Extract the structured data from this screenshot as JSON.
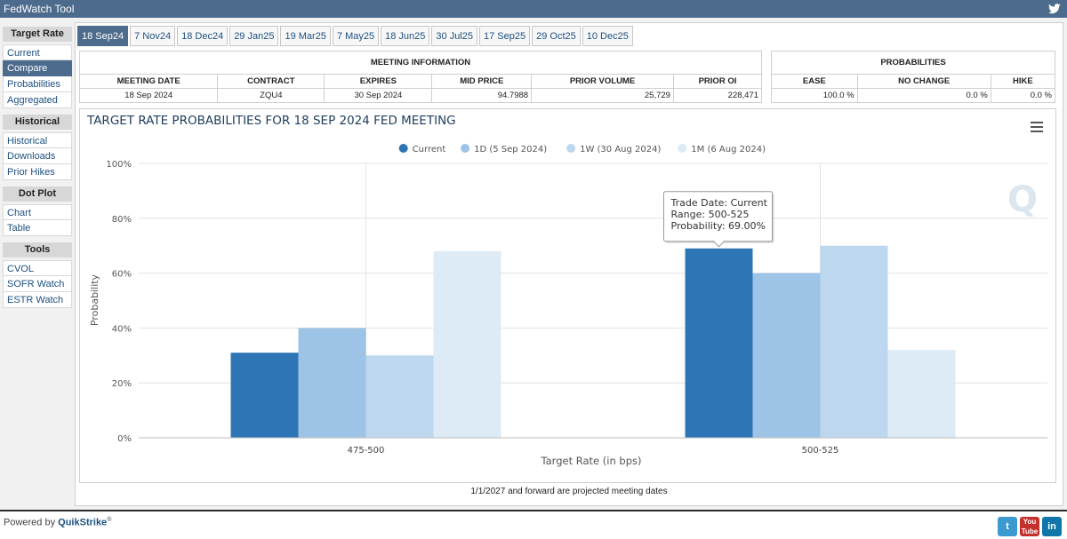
{
  "app": {
    "title": "FedWatch Tool"
  },
  "sidebar": {
    "sections": [
      {
        "heading": "Target Rate",
        "items": [
          "Current",
          "Compare",
          "Probabilities",
          "Aggregated"
        ]
      },
      {
        "heading": "Historical",
        "items": [
          "Historical",
          "Downloads",
          "Prior Hikes"
        ]
      },
      {
        "heading": "Dot Plot",
        "items": [
          "Chart",
          "Table"
        ]
      },
      {
        "heading": "Tools",
        "items": [
          "CVOL",
          "SOFR Watch",
          "ESTR Watch"
        ]
      }
    ],
    "active": "Compare"
  },
  "tabs": [
    "18 Sep24",
    "7 Nov24",
    "18 Dec24",
    "29 Jan25",
    "19 Mar25",
    "7 May25",
    "18 Jun25",
    "30 Jul25",
    "17 Sep25",
    "29 Oct25",
    "10 Dec25"
  ],
  "active_tab": "18 Sep24",
  "meeting_info": {
    "heading": "MEETING INFORMATION",
    "columns": [
      "MEETING DATE",
      "CONTRACT",
      "EXPIRES",
      "MID PRICE",
      "PRIOR VOLUME",
      "PRIOR OI"
    ],
    "row": [
      "18 Sep 2024",
      "ZQU4",
      "30 Sep 2024",
      "94.7988",
      "25,729",
      "228,471"
    ]
  },
  "probabilities": {
    "heading": "PROBABILITIES",
    "columns": [
      "EASE",
      "NO CHANGE",
      "HIKE"
    ],
    "row": [
      "100.0 %",
      "0.0 %",
      "0.0 %"
    ]
  },
  "chart_data": {
    "type": "bar",
    "title": "TARGET RATE PROBABILITIES FOR 18 SEP 2024 FED MEETING",
    "xlabel": "Target Rate (in bps)",
    "ylabel": "Probability",
    "categories": [
      "475-500",
      "500-525"
    ],
    "ylim": [
      0,
      100
    ],
    "yticks": [
      "0%",
      "20%",
      "40%",
      "60%",
      "80%",
      "100%"
    ],
    "legend_position": "top-center",
    "grid": true,
    "series": [
      {
        "name": "Current",
        "color": "#2e75b6",
        "values": [
          31,
          69
        ]
      },
      {
        "name": "1D (5 Sep 2024)",
        "color": "#9dc3e6",
        "values": [
          40,
          60
        ]
      },
      {
        "name": "1W (30 Aug 2024)",
        "color": "#bdd7ee",
        "values": [
          30,
          70
        ]
      },
      {
        "name": "1M (6 Aug 2024)",
        "color": "#ddebf7",
        "values": [
          68,
          32
        ]
      }
    ],
    "tooltip": {
      "line1": "Trade Date: Current",
      "line2": "Range: 500-525",
      "line3": "Probability: 69.00%"
    }
  },
  "footnote": "1/1/2027 and forward are projected meeting dates",
  "footer": {
    "powered_by": "Powered by ",
    "brand": "QuikStrike",
    "reg": "®"
  },
  "menu_icon": "hamburger-icon",
  "watermark_letter": "Q"
}
